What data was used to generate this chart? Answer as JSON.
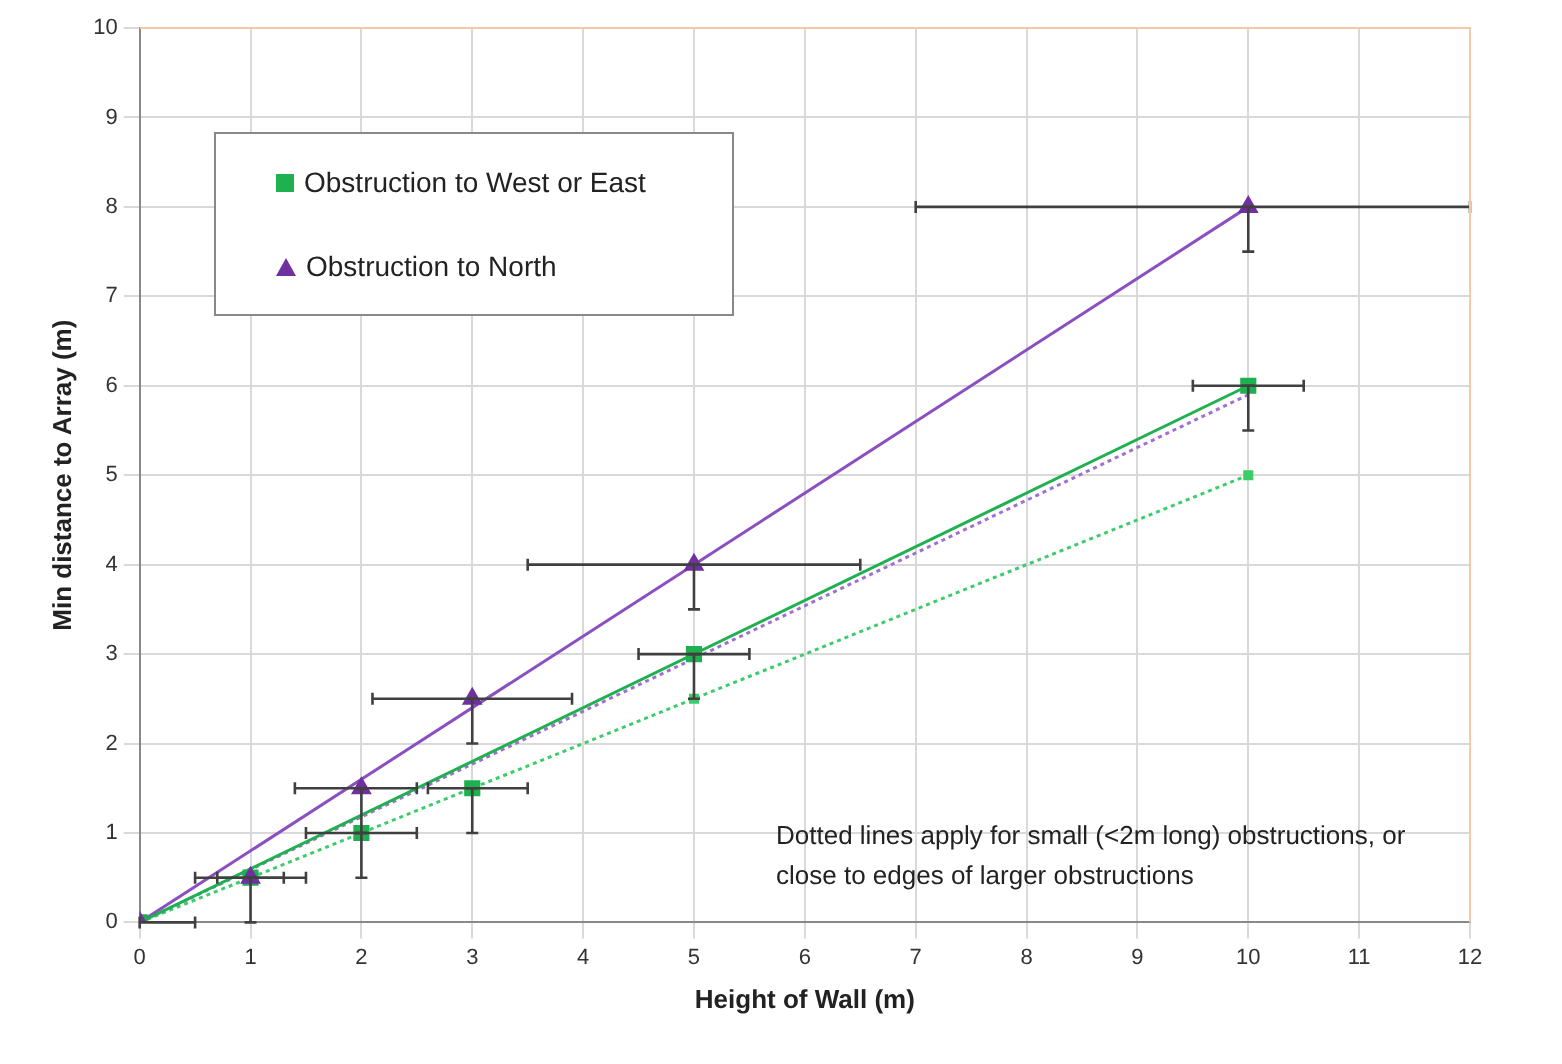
{
  "chart_data": {
    "type": "scatter",
    "xlabel": "Height of Wall (m)",
    "ylabel": "Min distance to Array (m)",
    "xlim": [
      0,
      12
    ],
    "xticks": [
      0,
      1,
      2,
      3,
      4,
      5,
      6,
      7,
      8,
      9,
      10,
      11,
      12
    ],
    "ylim": [
      0,
      10
    ],
    "yticks": [
      0,
      1,
      2,
      3,
      4,
      5,
      6,
      7,
      8,
      9,
      10
    ],
    "grid": true,
    "legend": "top left",
    "annotations": [
      "Dotted lines apply for small  (<2m long) obstructions, or close to edges of larger obstructions"
    ],
    "series": [
      {
        "name": "Obstruction to West or East",
        "type": "scatter",
        "marker": "square",
        "color": "#1fb050",
        "x": [
          0,
          1,
          2,
          3,
          5,
          10
        ],
        "values": [
          0,
          0.5,
          1,
          1.5,
          3,
          6
        ],
        "errors": [
          null,
          [
            0,
            0.5
          ],
          [
            0.5,
            1
          ],
          [
            1,
            1.5
          ],
          [
            2.5,
            3
          ],
          [
            5.5,
            6
          ]
        ],
        "xerrors": [
          [
            0,
            0.5
          ],
          [
            0.5,
            1.5
          ],
          [
            1.5,
            2.5
          ],
          [
            2.6,
            3.5
          ],
          [
            4.5,
            5.5
          ],
          [
            9.5,
            10.5
          ]
        ]
      },
      {
        "name": "Obstruction to North",
        "type": "scatter",
        "marker": "triangle",
        "color": "#7030a0",
        "x": [
          0,
          1,
          2,
          3,
          5,
          10
        ],
        "values": [
          0,
          0.5,
          1.5,
          2.5,
          4,
          8
        ],
        "errors": [
          null,
          null,
          [
            1,
            1.5
          ],
          [
            2,
            2.5
          ],
          [
            3.5,
            4
          ],
          [
            7.5,
            8
          ]
        ],
        "xerrors": [
          null,
          [
            0.7,
            1.3
          ],
          [
            1.4,
            2.5
          ],
          [
            2.1,
            3.9
          ],
          [
            3.5,
            6.5
          ],
          [
            7,
            12
          ]
        ]
      },
      {
        "type": "line",
        "marker": "none",
        "line_style": "solid",
        "color": "#1fb050",
        "x": [
          0,
          10
        ],
        "values": [
          0,
          6
        ]
      },
      {
        "type": "line",
        "marker": "none",
        "line_style": "solid",
        "color": "#8a4fc0",
        "x": [
          0,
          10
        ],
        "values": [
          0,
          8
        ]
      },
      {
        "type": "line",
        "marker": "none",
        "line_style": "dotted",
        "color": "#a070d0",
        "x": [
          0,
          10
        ],
        "values": [
          0,
          5.9
        ]
      },
      {
        "type": "line",
        "marker": "square",
        "line_style": "dotted",
        "color": "#3ccc6a",
        "x": [
          0,
          5,
          10
        ],
        "values": [
          0,
          2.5,
          5
        ]
      }
    ]
  }
}
